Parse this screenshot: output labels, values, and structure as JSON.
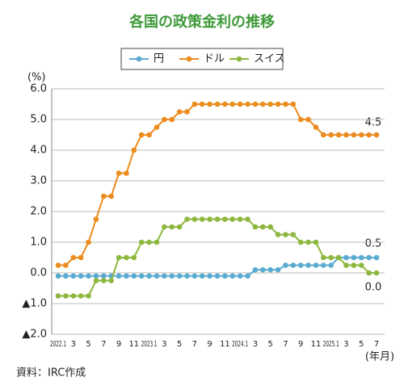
{
  "chart_data": {
    "type": "line",
    "title": "各国の政策金利の推移",
    "y_unit": "(%)",
    "x_unit": "(年月)",
    "source": "資料：IRC作成",
    "annotations": [
      "4.5",
      "0.5",
      "0.0"
    ],
    "categories": [
      "2022.1",
      null,
      "3",
      null,
      "5",
      null,
      "7",
      null,
      "9",
      null,
      "11",
      null,
      "2023.1",
      null,
      "3",
      null,
      "5",
      null,
      "7",
      null,
      "9",
      null,
      "11",
      null,
      "2024.1",
      null,
      "3",
      null,
      "5",
      null,
      "7",
      null,
      "9",
      null,
      "11",
      null,
      "2025.1",
      null,
      "3",
      null,
      "5",
      null,
      "7"
    ],
    "series": [
      {
        "name": "円",
        "color": "#5aabd1",
        "values": [
          -0.1,
          -0.1,
          -0.1,
          -0.1,
          -0.1,
          -0.1,
          -0.1,
          -0.1,
          -0.1,
          -0.1,
          -0.1,
          -0.1,
          -0.1,
          -0.1,
          -0.1,
          -0.1,
          -0.1,
          -0.1,
          -0.1,
          -0.1,
          -0.1,
          -0.1,
          -0.1,
          -0.1,
          -0.1,
          -0.1,
          0.1,
          0.1,
          0.1,
          0.1,
          0.25,
          0.25,
          0.25,
          0.25,
          0.25,
          0.25,
          0.25,
          0.5,
          0.5,
          0.5,
          0.5,
          0.5,
          0.5
        ]
      },
      {
        "name": "ドル",
        "color": "#ec8c1e",
        "values": [
          0.25,
          0.25,
          0.5,
          0.5,
          1.0,
          1.75,
          2.5,
          2.5,
          3.25,
          3.25,
          4.0,
          4.5,
          4.5,
          4.75,
          5.0,
          5.0,
          5.25,
          5.25,
          5.5,
          5.5,
          5.5,
          5.5,
          5.5,
          5.5,
          5.5,
          5.5,
          5.5,
          5.5,
          5.5,
          5.5,
          5.5,
          5.5,
          5.0,
          5.0,
          4.75,
          4.5,
          4.5,
          4.5,
          4.5,
          4.5,
          4.5,
          4.5,
          4.5
        ]
      },
      {
        "name": "スイス",
        "color": "#8db83f",
        "values": [
          -0.75,
          -0.75,
          -0.75,
          -0.75,
          -0.75,
          -0.25,
          -0.25,
          -0.25,
          0.5,
          0.5,
          0.5,
          1.0,
          1.0,
          1.0,
          1.5,
          1.5,
          1.5,
          1.75,
          1.75,
          1.75,
          1.75,
          1.75,
          1.75,
          1.75,
          1.75,
          1.75,
          1.5,
          1.5,
          1.5,
          1.25,
          1.25,
          1.25,
          1.0,
          1.0,
          1.0,
          0.5,
          0.5,
          0.5,
          0.25,
          0.25,
          0.25,
          0.0,
          0.0
        ]
      }
    ],
    "ylim": [
      -2,
      6
    ],
    "yticks": [
      {
        "value": 6,
        "label": "6.0"
      },
      {
        "value": 5,
        "label": "5.0"
      },
      {
        "value": 4,
        "label": "4.0"
      },
      {
        "value": 3,
        "label": "3.0"
      },
      {
        "value": 2,
        "label": "2.0"
      },
      {
        "value": 1,
        "label": "1.0"
      },
      {
        "value": 0,
        "label": "0.0"
      },
      {
        "value": -1,
        "label": "▲1.0"
      },
      {
        "value": -2,
        "label": "▲2.0"
      }
    ],
    "grid": true
  }
}
